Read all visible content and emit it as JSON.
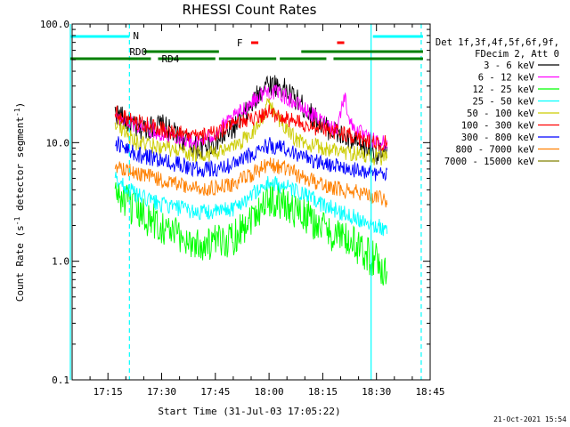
{
  "chart_data": {
    "type": "line",
    "title": "RHESSI Count Rates",
    "xlabel": "Start Time (31-Jul-03 17:05:22)",
    "ylabel_parts": [
      "Count Rate (s",
      "-1",
      " detector segment",
      "-1",
      ")"
    ],
    "yscale": "log",
    "ylim": [
      0.1,
      100.0
    ],
    "y_ticks": [
      {
        "value": 0.1,
        "label": "0.1"
      },
      {
        "value": 1.0,
        "label": "1.0"
      },
      {
        "value": 10.0,
        "label": "10.0"
      },
      {
        "value": 100.0,
        "label": "100.0"
      }
    ],
    "x_minutes_range": [
      0,
      100
    ],
    "x_ticks": [
      {
        "minute": 10,
        "label": "17:15"
      },
      {
        "minute": 25,
        "label": "17:30"
      },
      {
        "minute": 40,
        "label": "17:45"
      },
      {
        "minute": 55,
        "label": "18:00"
      },
      {
        "minute": 70,
        "label": "18:15"
      },
      {
        "minute": 85,
        "label": "18:30"
      },
      {
        "minute": 100,
        "label": "18:45"
      }
    ],
    "legend_header": [
      "Det 1f,3f,4f,5f,6f,9f,",
      "FDecim 2, Att 0"
    ],
    "series": [
      {
        "name": "3 - 6 keV",
        "color": "#000000",
        "t": [
          12,
          18,
          25,
          30,
          35,
          40,
          45,
          50,
          54,
          58,
          62,
          66,
          70,
          74,
          78,
          82,
          86,
          88
        ],
        "y": [
          18,
          13,
          14,
          11,
          9,
          10,
          13,
          20,
          32,
          30,
          24,
          18,
          14,
          12,
          10,
          9,
          8,
          8
        ]
      },
      {
        "name": "6 - 12 keV",
        "color": "#ff00ff",
        "t": [
          12,
          18,
          25,
          30,
          35,
          40,
          45,
          50,
          54,
          58,
          62,
          66,
          70,
          74,
          76,
          78,
          82,
          86,
          88
        ],
        "y": [
          16,
          14,
          12,
          11,
          10,
          12,
          16,
          22,
          27,
          26,
          22,
          18,
          15,
          13,
          25,
          14,
          11,
          10,
          10
        ]
      },
      {
        "name": "12 - 25 keV",
        "color": "#00ff00",
        "t": [
          12,
          18,
          25,
          30,
          35,
          40,
          45,
          50,
          55,
          60,
          65,
          70,
          75,
          80,
          85,
          88
        ],
        "y": [
          3.8,
          2.6,
          2.0,
          1.6,
          1.4,
          1.4,
          1.6,
          2.4,
          3.4,
          3.0,
          2.4,
          1.9,
          1.6,
          1.3,
          1.0,
          0.8
        ]
      },
      {
        "name": "25 - 50 keV",
        "color": "#00ffff",
        "t": [
          12,
          18,
          25,
          30,
          35,
          40,
          45,
          50,
          55,
          60,
          65,
          70,
          75,
          80,
          85,
          88
        ],
        "y": [
          5.0,
          3.6,
          3.0,
          2.8,
          2.6,
          2.6,
          2.8,
          3.6,
          4.6,
          4.2,
          3.6,
          3.0,
          2.6,
          2.3,
          2.0,
          1.8
        ]
      },
      {
        "name": "50 - 100 keV",
        "color": "#cccc00",
        "t": [
          12,
          18,
          25,
          30,
          35,
          40,
          45,
          50,
          53,
          55,
          58,
          62,
          66,
          70,
          75,
          80,
          85,
          88
        ],
        "y": [
          15,
          10,
          9,
          8.5,
          8,
          8,
          9,
          12,
          16,
          22,
          15,
          11,
          9.5,
          9,
          8.5,
          8,
          7.5,
          7.5
        ]
      },
      {
        "name": "100 - 300 keV",
        "color": "#ff0000",
        "t": [
          12,
          18,
          25,
          30,
          35,
          40,
          45,
          50,
          55,
          60,
          65,
          70,
          75,
          80,
          85,
          88
        ],
        "y": [
          18,
          15,
          13,
          12,
          11,
          12,
          14,
          16,
          18,
          16,
          14,
          13,
          12,
          11,
          10,
          10
        ]
      },
      {
        "name": "300 - 800 keV",
        "color": "#0000ff",
        "t": [
          12,
          18,
          25,
          30,
          35,
          40,
          45,
          50,
          55,
          60,
          65,
          70,
          75,
          80,
          85,
          88
        ],
        "y": [
          10,
          8,
          7,
          6.5,
          6,
          6,
          6.5,
          8,
          9.5,
          9,
          7.5,
          6.8,
          6.2,
          5.8,
          5.5,
          5.2
        ]
      },
      {
        "name": "800 - 7000 keV",
        "color": "#ff8000",
        "t": [
          12,
          18,
          25,
          30,
          35,
          40,
          45,
          50,
          55,
          60,
          65,
          70,
          75,
          80,
          85,
          88
        ],
        "y": [
          6.5,
          5.5,
          4.8,
          4.4,
          4.1,
          4.1,
          4.4,
          5.4,
          6.5,
          6.0,
          5.0,
          4.5,
          4.0,
          3.8,
          3.5,
          3.3
        ]
      },
      {
        "name": "7000 - 15000 keV",
        "color": "#808000",
        "t": [],
        "y": []
      }
    ],
    "attenuator_bars": [
      {
        "label": "N",
        "color": "#00ffff",
        "start": -0.5,
        "end": 16,
        "label_at": 17
      },
      {
        "label": "",
        "color": "#00ffff",
        "start": 84,
        "end": 98,
        "label_at": null
      }
    ],
    "flag_rows": [
      {
        "label": "RD0",
        "color": "#008000",
        "segments": [
          [
            20,
            41
          ],
          [
            64,
            98
          ]
        ],
        "label_at": 16
      },
      {
        "label": "RD4",
        "color": "#008000",
        "segments": [
          [
            -0.5,
            22
          ],
          [
            24,
            40
          ],
          [
            41,
            57
          ],
          [
            58,
            71
          ],
          [
            73,
            98
          ]
        ],
        "label_at": 25
      },
      {
        "label": "F",
        "color": "#ff0000",
        "segments": [
          [
            50,
            52
          ],
          [
            74,
            76
          ]
        ],
        "label_at": 46
      }
    ],
    "vlines": [
      {
        "minute": -0.5,
        "color": "#00ffff",
        "style": "solid"
      },
      {
        "minute": 16,
        "color": "#00ffff",
        "style": "dashed"
      },
      {
        "minute": 83.5,
        "color": "#00ffff",
        "style": "solid"
      },
      {
        "minute": 97.5,
        "color": "#00ffff",
        "style": "dashed"
      }
    ],
    "timestamp": "21-Oct-2021 15:54"
  }
}
